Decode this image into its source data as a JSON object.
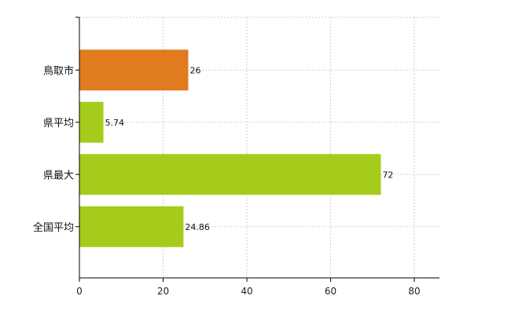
{
  "chart_data": {
    "type": "bar",
    "orientation": "horizontal",
    "categories": [
      "鳥取市",
      "県平均",
      "県最大",
      "全国平均"
    ],
    "values": [
      26,
      5.74,
      72,
      24.86
    ],
    "data_labels": [
      "26",
      "5.74",
      "72",
      "24.86"
    ],
    "bar_colors": [
      "#e07b20",
      "#a6cc1b",
      "#a6cc1b",
      "#a6cc1b"
    ],
    "xlim": [
      0,
      86
    ],
    "x_ticks": [
      0,
      20,
      40,
      60,
      80
    ],
    "x_tick_labels": [
      "0",
      "20",
      "40",
      "60",
      "80"
    ],
    "grid": true,
    "title": "",
    "xlabel": "",
    "ylabel": ""
  }
}
